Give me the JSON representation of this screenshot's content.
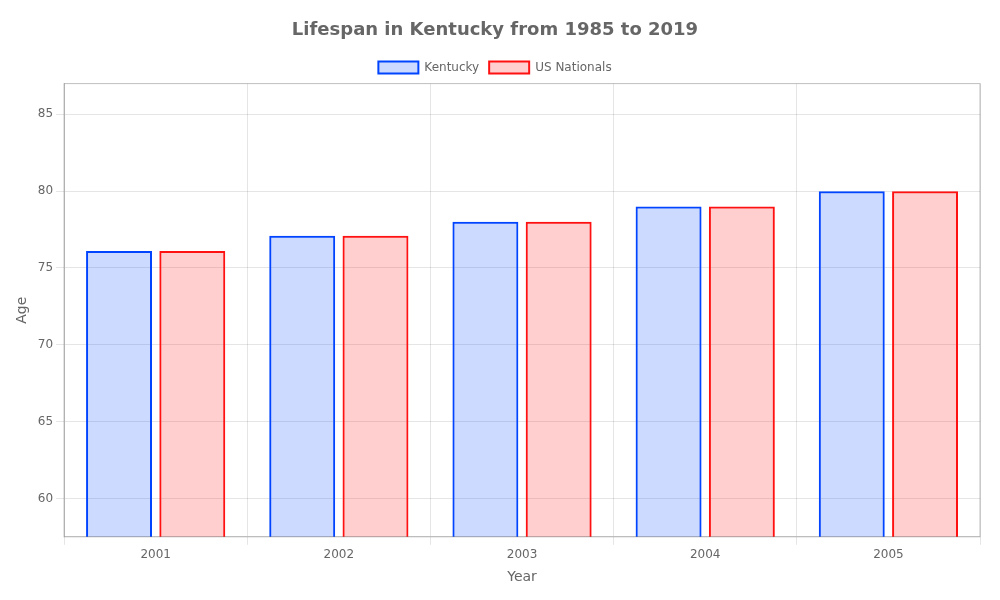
{
  "chart_data": {
    "type": "bar",
    "title": "Lifespan in Kentucky from 1985 to 2019",
    "xlabel": "Year",
    "ylabel": "Age",
    "categories": [
      "2001",
      "2002",
      "2003",
      "2004",
      "2005"
    ],
    "series": [
      {
        "name": "Kentucky",
        "color": "#0044ff",
        "values": [
          76.1,
          77.1,
          78.0,
          79.0,
          80.0
        ]
      },
      {
        "name": "US Nationals",
        "color": "#ff1111",
        "values": [
          76.1,
          77.1,
          78.0,
          79.0,
          80.0
        ]
      }
    ],
    "ylim": [
      57.5,
      87
    ],
    "yticks": [
      60,
      65,
      70,
      75,
      80,
      85
    ],
    "grid": true,
    "legend": "top"
  }
}
